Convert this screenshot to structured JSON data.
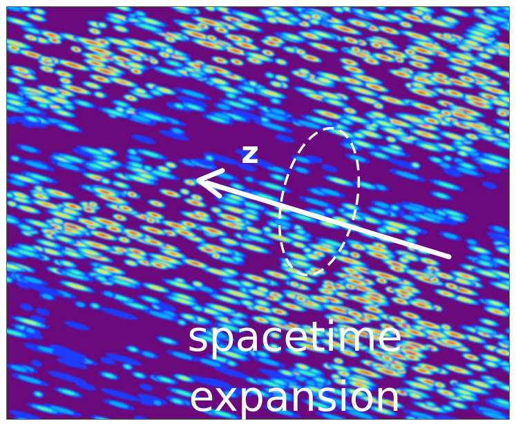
{
  "labels": {
    "axis": "z",
    "caption_line1": "spacetime",
    "caption_line2": "expansion"
  }
}
